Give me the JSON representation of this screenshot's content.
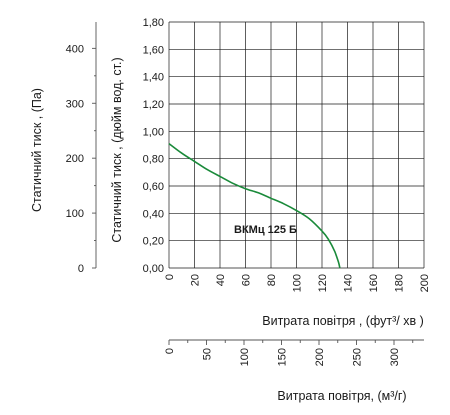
{
  "chart_data": {
    "type": "line",
    "series": [
      {
        "name": "ВКМц 125 Б",
        "color": "#1a8a3a",
        "points": [
          [
            0,
            0.91
          ],
          [
            10,
            0.84
          ],
          [
            20,
            0.78
          ],
          [
            30,
            0.72
          ],
          [
            40,
            0.67
          ],
          [
            50,
            0.62
          ],
          [
            60,
            0.58
          ],
          [
            70,
            0.55
          ],
          [
            80,
            0.51
          ],
          [
            90,
            0.47
          ],
          [
            100,
            0.42
          ],
          [
            110,
            0.36
          ],
          [
            120,
            0.27
          ],
          [
            125,
            0.21
          ],
          [
            130,
            0.12
          ],
          [
            133,
            0.04
          ],
          [
            134,
            0.0
          ]
        ]
      }
    ],
    "x_axis": {
      "label": "Витрата повітря , (фут³/  хв )",
      "range": [
        0,
        200
      ],
      "ticks": [
        "0",
        "20",
        "40",
        "60",
        "80",
        "100",
        "120",
        "140",
        "160",
        "180",
        "200"
      ]
    },
    "y_axis": {
      "label": "Статичний тиск , (дюйм вод. ст.)",
      "range": [
        0,
        1.8
      ],
      "ticks": [
        "0,00",
        "0,20",
        "0,40",
        "0,60",
        "0,80",
        "1,00",
        "1,20",
        "1,40",
        "1,60",
        "1,80"
      ]
    },
    "y2_axis": {
      "label": "Статичний тиск , (Па)",
      "range": [
        0,
        448
      ],
      "ticks": [
        "0",
        "100",
        "200",
        "300",
        "400"
      ]
    },
    "x2_axis": {
      "label": "Витрата повітря, (м³/г)",
      "range": [
        0,
        340
      ],
      "ticks": [
        "0",
        "50",
        "100",
        "150",
        "200",
        "250",
        "300"
      ]
    },
    "grid": true
  }
}
